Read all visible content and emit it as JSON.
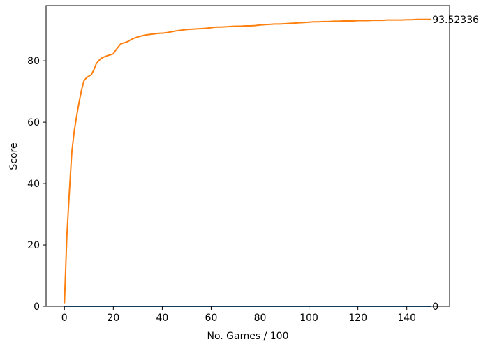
{
  "chart_data": {
    "type": "line",
    "title": "",
    "xlabel": "No. Games / 100",
    "ylabel": "Score",
    "xlim": [
      -7.5,
      157.5
    ],
    "ylim": [
      0,
      98
    ],
    "xticks": [
      0,
      20,
      40,
      60,
      80,
      100,
      120,
      140
    ],
    "yticks": [
      0,
      20,
      40,
      60,
      80
    ],
    "grid": false,
    "legend": "none",
    "annotations": [
      {
        "text": "93.52336",
        "x": 151,
        "y": 93.5
      },
      {
        "text": "0",
        "x": 151,
        "y": 0
      }
    ],
    "series": [
      {
        "color": "#1f77b4",
        "x": [
          0,
          150
        ],
        "y": [
          0,
          0
        ]
      },
      {
        "color": "#ff7f0e",
        "x": [
          0,
          1,
          2,
          3,
          4,
          5,
          6,
          7,
          8,
          9,
          10,
          11,
          12,
          13,
          14,
          15,
          16,
          17,
          18,
          19,
          20,
          21,
          22,
          23,
          24,
          25,
          26,
          27,
          28,
          29,
          30,
          31,
          32,
          33,
          34,
          35,
          36,
          37,
          38,
          39,
          40,
          42,
          44,
          46,
          48,
          50,
          52,
          54,
          56,
          58,
          60,
          62,
          64,
          66,
          68,
          70,
          72,
          74,
          76,
          78,
          80,
          82,
          84,
          86,
          88,
          90,
          92,
          94,
          96,
          98,
          100,
          102,
          104,
          106,
          108,
          110,
          112,
          114,
          116,
          118,
          120,
          122,
          124,
          126,
          128,
          130,
          132,
          134,
          136,
          138,
          140,
          142,
          144,
          146,
          148,
          150
        ],
        "y": [
          1.0,
          23.0,
          37.0,
          50.0,
          57.0,
          62.0,
          66.5,
          70.5,
          73.5,
          74.5,
          75.0,
          75.5,
          77.0,
          79.0,
          80.0,
          80.8,
          81.2,
          81.5,
          81.8,
          82.0,
          82.3,
          83.5,
          84.5,
          85.5,
          85.8,
          86.0,
          86.3,
          86.8,
          87.2,
          87.5,
          87.8,
          88.0,
          88.2,
          88.4,
          88.5,
          88.6,
          88.7,
          88.8,
          88.9,
          89.0,
          89.0,
          89.2,
          89.5,
          89.8,
          90.0,
          90.2,
          90.3,
          90.4,
          90.5,
          90.6,
          90.8,
          91.0,
          91.0,
          91.1,
          91.2,
          91.3,
          91.3,
          91.4,
          91.4,
          91.5,
          91.7,
          91.8,
          91.9,
          92.0,
          92.0,
          92.1,
          92.2,
          92.3,
          92.4,
          92.5,
          92.6,
          92.7,
          92.7,
          92.8,
          92.8,
          92.9,
          92.9,
          93.0,
          93.0,
          93.0,
          93.1,
          93.1,
          93.1,
          93.2,
          93.2,
          93.2,
          93.3,
          93.3,
          93.3,
          93.3,
          93.4,
          93.4,
          93.5,
          93.5,
          93.5,
          93.52
        ]
      }
    ]
  }
}
